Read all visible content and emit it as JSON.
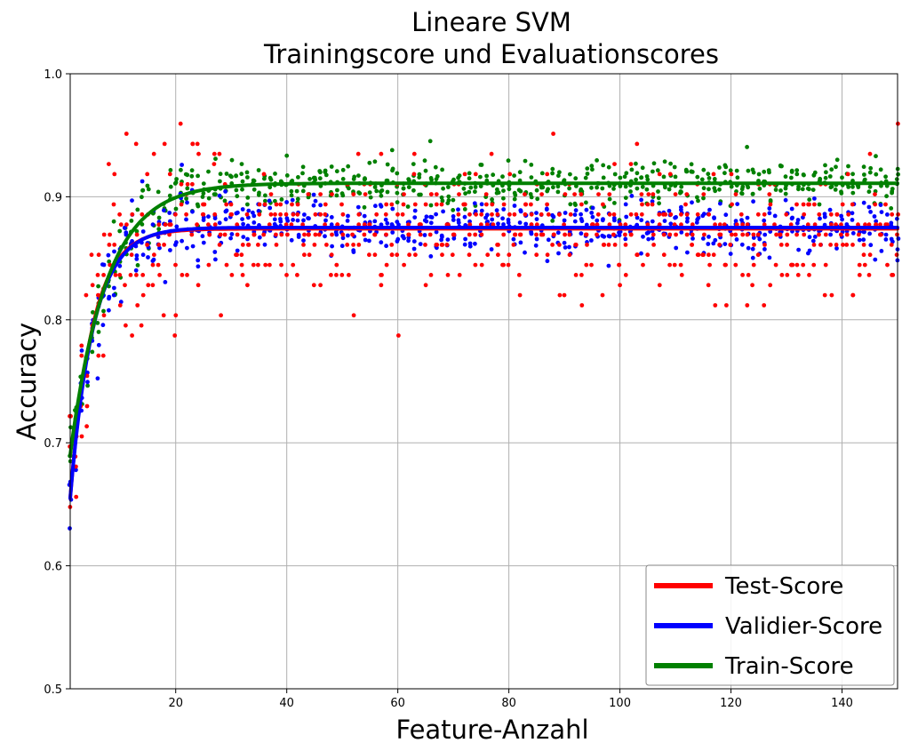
{
  "chart_data": {
    "type": "scatter",
    "title": [
      "Lineare SVM",
      "Trainingscore und Evaluationscores"
    ],
    "xlabel": "Feature-Anzahl",
    "ylabel": "Accuracy",
    "xlim": [
      1,
      150
    ],
    "ylim": [
      0.5,
      1.0
    ],
    "xticks": [
      20,
      40,
      60,
      80,
      100,
      120,
      140
    ],
    "yticks": [
      0.5,
      0.6,
      0.7,
      0.8,
      0.9,
      1.0
    ],
    "ytick_labels": [
      "0.5",
      "0.6",
      "0.7",
      "0.8",
      "0.9",
      "1.0"
    ],
    "grid": true,
    "legend_position": "lower-right",
    "series": [
      {
        "name": "Test-Score",
        "color": "#ff0000",
        "fit": {
          "model": "plateau-exponential",
          "start": 0.655,
          "plateau": 0.874,
          "rate": 0.25
        },
        "noise": 0.024,
        "points_per_feature": 4
      },
      {
        "name": "Validier-Score",
        "color": "#0000ff",
        "fit": {
          "model": "plateau-exponential",
          "start": 0.655,
          "plateau": 0.875,
          "rate": 0.24
        },
        "noise": 0.011,
        "points_per_feature": 4
      },
      {
        "name": "Train-Score",
        "color": "#008000",
        "fit": {
          "model": "plateau-exponential",
          "start": 0.69,
          "plateau": 0.911,
          "rate": 0.155
        },
        "noise": 0.009,
        "points_per_feature": 4
      }
    ]
  }
}
